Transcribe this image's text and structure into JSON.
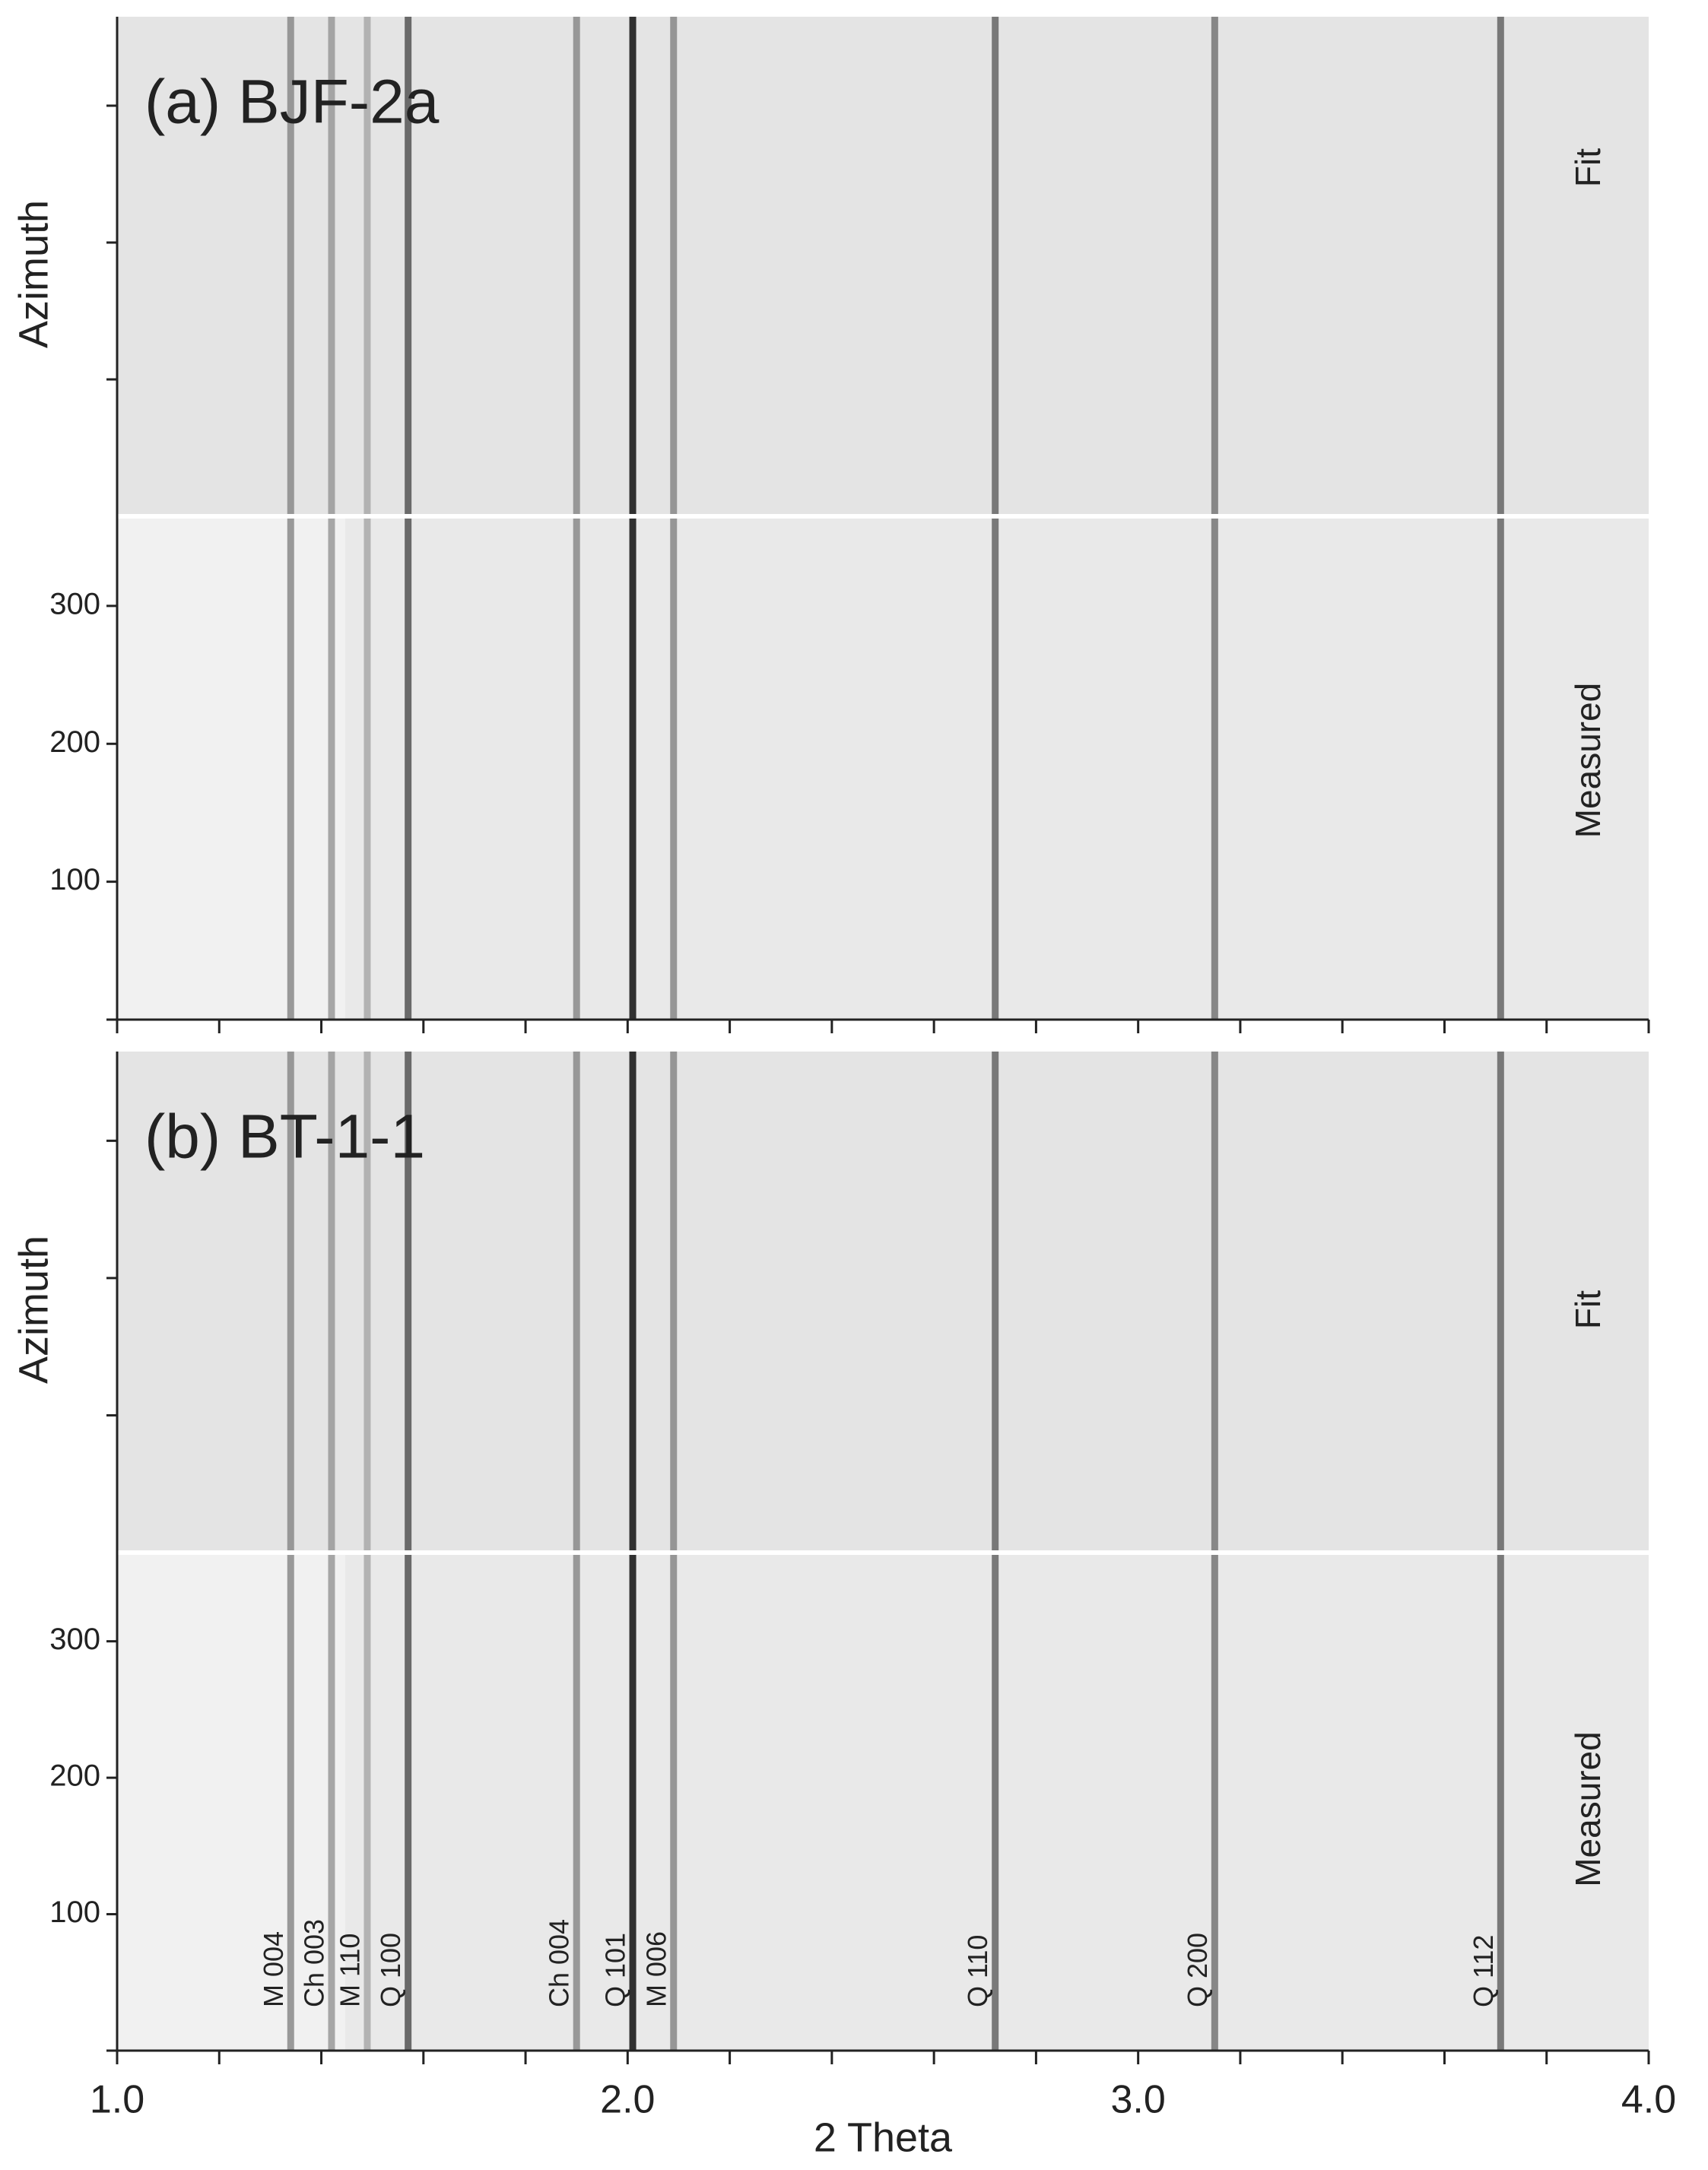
{
  "chart_data": {
    "type": "peaks",
    "xlabel": "2 Theta",
    "xlim": [
      1.0,
      4.0
    ],
    "xticks": [
      {
        "value": 1.0,
        "label": "1.0"
      },
      {
        "value": 2.0,
        "label": "2.0"
      },
      {
        "value": 3.0,
        "label": "3.0"
      },
      {
        "value": 4.0,
        "label": "4.0"
      }
    ],
    "xticks_minor": [
      1.2,
      1.4,
      1.6,
      1.8,
      2.2,
      2.4,
      2.6,
      2.8,
      3.2,
      3.4,
      3.6,
      3.8
    ],
    "ylim": [
      0,
      365
    ],
    "yticks": [
      100,
      200,
      300
    ],
    "panels": [
      {
        "title": "(a) BJF-2a",
        "ylabel": "Azimuth",
        "fit_label": "Fit",
        "measured_label": "Measured"
      },
      {
        "title": "(b) BT-1-1",
        "ylabel": "Azimuth",
        "fit_label": "Fit",
        "measured_label": "Measured"
      }
    ],
    "peaks": [
      {
        "name": "M 004",
        "position": 1.34,
        "color": "#8a8a8a"
      },
      {
        "name": "Ch 003",
        "position": 1.42,
        "color": "#9a9a9a"
      },
      {
        "name": "M 110",
        "position": 1.49,
        "color": "#aaaaaa"
      },
      {
        "name": "Q 100",
        "position": 1.57,
        "color": "#555555"
      },
      {
        "name": "Ch 004",
        "position": 1.9,
        "color": "#8a8a8a"
      },
      {
        "name": "Q 101",
        "position": 2.01,
        "color": "#111111"
      },
      {
        "name": "M 006",
        "position": 2.09,
        "color": "#888888"
      },
      {
        "name": "Q 110",
        "position": 2.72,
        "color": "#666666"
      },
      {
        "name": "Q 200",
        "position": 3.15,
        "color": "#777777"
      },
      {
        "name": "Q 112",
        "position": 3.71,
        "color": "#666666"
      }
    ]
  }
}
